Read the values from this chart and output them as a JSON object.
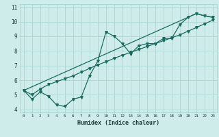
{
  "xlabel": "Humidex (Indice chaleur)",
  "xlim": [
    -0.5,
    23.5
  ],
  "ylim": [
    3.8,
    11.2
  ],
  "xticks": [
    0,
    1,
    2,
    3,
    4,
    5,
    6,
    7,
    8,
    9,
    10,
    11,
    12,
    13,
    14,
    15,
    16,
    17,
    18,
    19,
    20,
    21,
    22,
    23
  ],
  "yticks": [
    4,
    5,
    6,
    7,
    8,
    9,
    10,
    11
  ],
  "bg_color": "#ceecea",
  "grid_color": "#b0d8d4",
  "line_color": "#1a6b5e",
  "line1_x": [
    0,
    1,
    2,
    3,
    4,
    5,
    6,
    7,
    8,
    9,
    10,
    11,
    12,
    13,
    14,
    15,
    16,
    17,
    18,
    19,
    20,
    21,
    22,
    23
  ],
  "line1_y": [
    5.3,
    4.7,
    5.2,
    4.9,
    4.3,
    4.2,
    4.7,
    4.85,
    6.3,
    7.3,
    9.3,
    9.0,
    8.5,
    7.8,
    8.35,
    8.5,
    8.5,
    8.85,
    8.85,
    9.8,
    10.3,
    10.55,
    10.4,
    10.3
  ],
  "line2_x": [
    0,
    21,
    22,
    23
  ],
  "line2_y": [
    5.3,
    10.55,
    10.4,
    10.3
  ],
  "line3_x": [
    0,
    1,
    2,
    3,
    4,
    5,
    6,
    7,
    8,
    9,
    10,
    11,
    12,
    13,
    14,
    15,
    16,
    17,
    18,
    19,
    20,
    21,
    22,
    23
  ],
  "line3_y": [
    5.3,
    5.0,
    5.4,
    5.7,
    5.9,
    6.1,
    6.3,
    6.55,
    6.8,
    7.05,
    7.25,
    7.5,
    7.7,
    7.9,
    8.1,
    8.3,
    8.5,
    8.7,
    8.9,
    9.1,
    9.35,
    9.6,
    9.85,
    10.1
  ]
}
